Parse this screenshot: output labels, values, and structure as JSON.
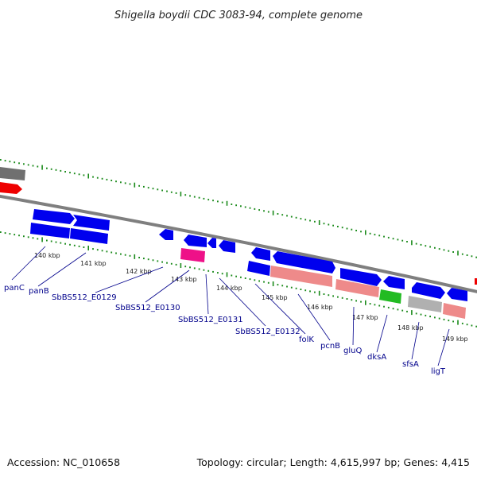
{
  "title": "Shigella boydii CDC 3083-94, complete genome",
  "footer": {
    "accession": "Accession: NC_010658",
    "summary": "Topology: circular; Length: 4,615,997 bp; Genes: 4,415"
  },
  "colors": {
    "backbone": "#7f7f7f",
    "tick": "#1a8a1a",
    "cds_blue": "#0000ee",
    "cds_pink": "#ee8a8a",
    "cds_magenta": "#ee1188",
    "cds_green": "#22bb22",
    "cds_grey": "#b0b0b0",
    "cds_red": "#ee0000",
    "cds_darkgrey": "#707070",
    "label": "#00008b"
  },
  "chart_data": {
    "type": "genome-map",
    "scale_labels": [
      {
        "kbp": 140,
        "text": "140 kbp"
      },
      {
        "kbp": 141,
        "text": "141 kbp"
      },
      {
        "kbp": 142,
        "text": "142 kbp"
      },
      {
        "kbp": 143,
        "text": "143 kbp"
      },
      {
        "kbp": 144,
        "text": "144 kbp"
      },
      {
        "kbp": 145,
        "text": "145 kbp"
      },
      {
        "kbp": 146,
        "text": "146 kbp"
      },
      {
        "kbp": 147,
        "text": "147 kbp"
      },
      {
        "kbp": 148,
        "text": "148 kbp"
      },
      {
        "kbp": 149,
        "text": "149 kbp"
      }
    ],
    "gene_labels": [
      {
        "name": "panC"
      },
      {
        "name": "panB"
      },
      {
        "name": "SbBS512_E0129"
      },
      {
        "name": "SbBS512_E0130"
      },
      {
        "name": "SbBS512_E0131"
      },
      {
        "name": "SbBS512_E0132"
      },
      {
        "name": "folK"
      },
      {
        "name": "pcnB"
      },
      {
        "name": "gluQ"
      },
      {
        "name": "dksA"
      },
      {
        "name": "sfsA"
      },
      {
        "name": "ligT"
      }
    ]
  }
}
